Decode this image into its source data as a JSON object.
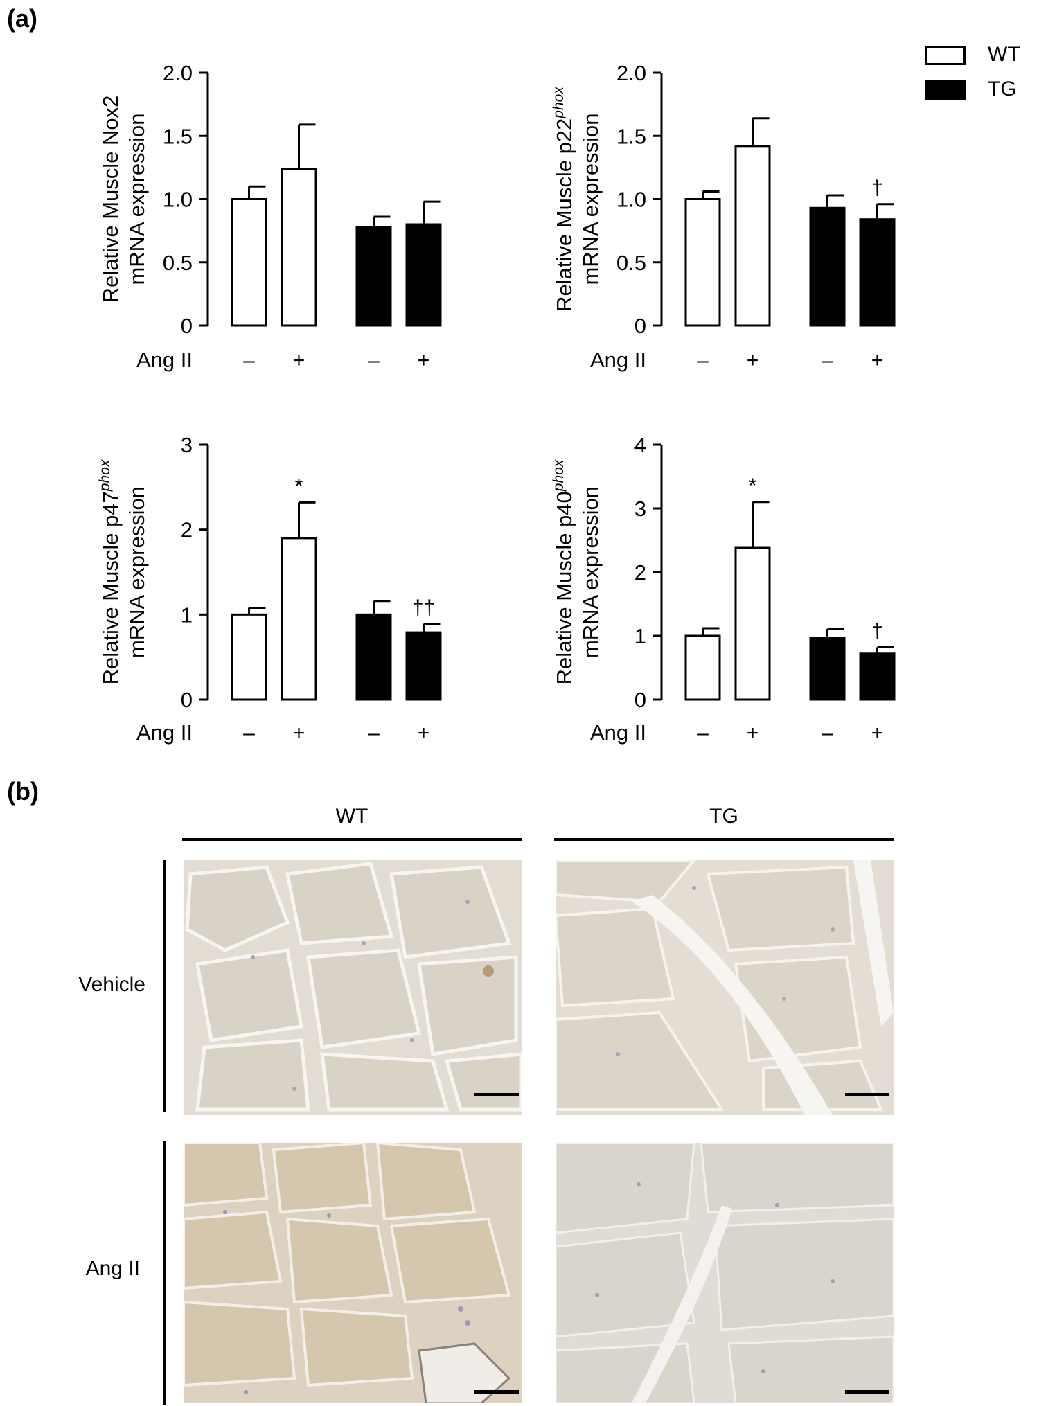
{
  "panel_a_label": "(a)",
  "panel_b_label": "(b)",
  "legend": [
    {
      "label": "WT",
      "fill": "#ffffff"
    },
    {
      "label": "TG",
      "fill": "#000000"
    }
  ],
  "x_treatment_label": "Ang II",
  "x_ticks": [
    "–",
    "+",
    "–",
    "+"
  ],
  "chart_data": [
    {
      "type": "bar",
      "ylabel_line1_plain": "Relative Muscle Nox2",
      "ylabel_line1_italic_sup": "",
      "ylabel_line2": "mRNA expression",
      "ylim": [
        0,
        2.0
      ],
      "yticks": [
        "0",
        "0.5",
        "1.0",
        "1.5",
        "2.0"
      ],
      "ytick_values": [
        0,
        0.5,
        1.0,
        1.5,
        2.0
      ],
      "categories": [
        "WT –",
        "WT +",
        "TG –",
        "TG +"
      ],
      "values": [
        1.0,
        1.24,
        0.78,
        0.8
      ],
      "errors": [
        0.1,
        0.35,
        0.08,
        0.18
      ],
      "annotations": [
        "",
        "",
        "",
        ""
      ]
    },
    {
      "type": "bar",
      "ylabel_line1_plain": "Relative Muscle p22",
      "ylabel_line1_italic_sup": "phox",
      "ylabel_line2": "mRNA expression",
      "ylim": [
        0,
        2.0
      ],
      "yticks": [
        "0",
        "0.5",
        "1.0",
        "1.5",
        "2.0"
      ],
      "ytick_values": [
        0,
        0.5,
        1.0,
        1.5,
        2.0
      ],
      "categories": [
        "WT –",
        "WT +",
        "TG –",
        "TG +"
      ],
      "values": [
        1.0,
        1.42,
        0.93,
        0.84
      ],
      "errors": [
        0.06,
        0.22,
        0.1,
        0.12
      ],
      "annotations": [
        "",
        "",
        "",
        "†"
      ]
    },
    {
      "type": "bar",
      "ylabel_line1_plain": "Relative Muscle p47",
      "ylabel_line1_italic_sup": "phox",
      "ylabel_line2": "mRNA expression",
      "ylim": [
        0,
        3
      ],
      "yticks": [
        "0",
        "1",
        "2",
        "3"
      ],
      "ytick_values": [
        0,
        1,
        2,
        3
      ],
      "categories": [
        "WT –",
        "WT +",
        "TG –",
        "TG +"
      ],
      "values": [
        1.0,
        1.9,
        1.0,
        0.79
      ],
      "errors": [
        0.08,
        0.42,
        0.16,
        0.1
      ],
      "annotations": [
        "",
        "*",
        "",
        "††"
      ]
    },
    {
      "type": "bar",
      "ylabel_line1_plain": "Relative Muscle p40",
      "ylabel_line1_italic_sup": "phox",
      "ylabel_line2": "mRNA expression",
      "ylim": [
        0,
        4
      ],
      "yticks": [
        "0",
        "1",
        "2",
        "3",
        "4"
      ],
      "ytick_values": [
        0,
        1,
        2,
        3,
        4
      ],
      "categories": [
        "WT –",
        "WT +",
        "TG –",
        "TG +"
      ],
      "values": [
        1.0,
        2.38,
        0.97,
        0.72
      ],
      "errors": [
        0.12,
        0.72,
        0.14,
        0.1
      ],
      "annotations": [
        "",
        "*",
        "",
        "†"
      ]
    }
  ],
  "histology": {
    "column_headers": [
      "WT",
      "TG"
    ],
    "row_headers": [
      "Vehicle",
      "Ang II"
    ]
  }
}
